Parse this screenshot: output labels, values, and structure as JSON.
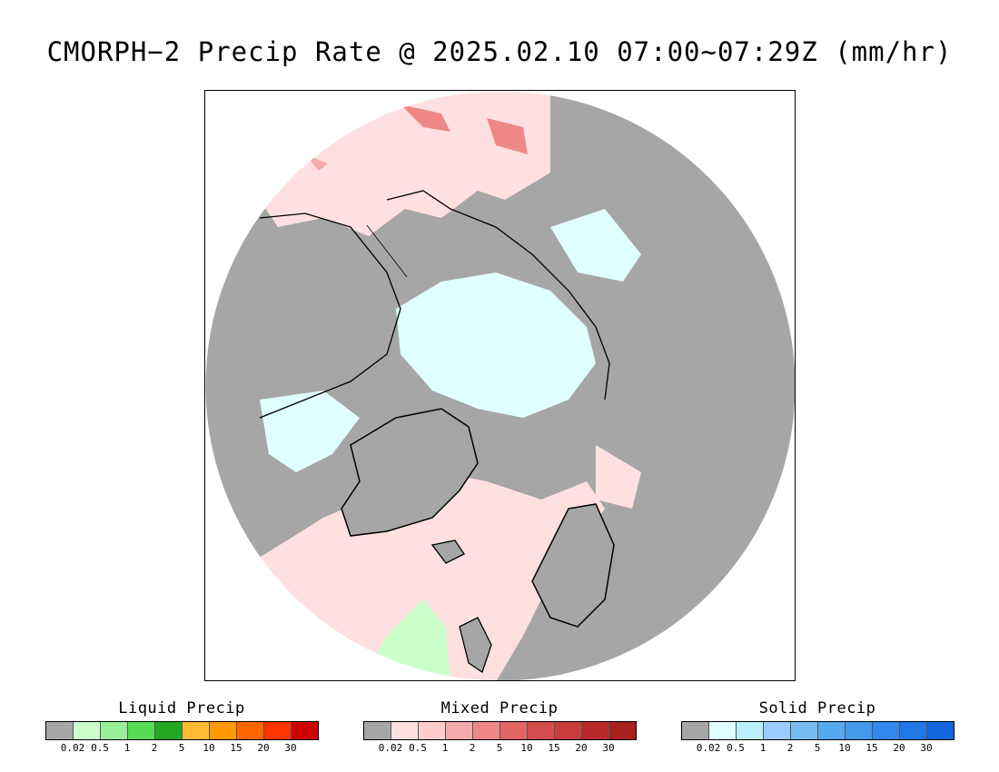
{
  "title": "CMORPH−2 Precip Rate @ 2025.02.10 07:00~07:29Z (mm/hr)",
  "map": {
    "background_no_precip": "#a6a6a6",
    "outside_disk": "#ffffff",
    "coastline_color": "#000000"
  },
  "legends": [
    {
      "title": "Liquid Precip",
      "colors": [
        "#a6a6a6",
        "#ccffcc",
        "#99ee99",
        "#55dd55",
        "#22aa22",
        "#ffbb33",
        "#ff9900",
        "#ff6600",
        "#ff3300",
        "#cc0000"
      ],
      "ticks": [
        "0.02",
        "0.5",
        "1",
        "2",
        "5",
        "10",
        "15",
        "20",
        "30"
      ]
    },
    {
      "title": "Mixed Precip",
      "colors": [
        "#a6a6a6",
        "#ffe0e0",
        "#ffcccc",
        "#f4aaaa",
        "#ee8888",
        "#e06666",
        "#d44d4d",
        "#c83c3c",
        "#b82a2a",
        "#a82020"
      ],
      "ticks": [
        "0.02",
        "0.5",
        "1",
        "2",
        "5",
        "10",
        "15",
        "20",
        "30"
      ]
    },
    {
      "title": "Solid Precip",
      "colors": [
        "#a6a6a6",
        "#e0ffff",
        "#bbeeff",
        "#99ccff",
        "#77bbf2",
        "#55aaee",
        "#4499ee",
        "#3388ee",
        "#2277e6",
        "#1166dd"
      ],
      "ticks": [
        "0.02",
        "0.5",
        "1",
        "2",
        "5",
        "10",
        "15",
        "20",
        "30"
      ]
    }
  ]
}
